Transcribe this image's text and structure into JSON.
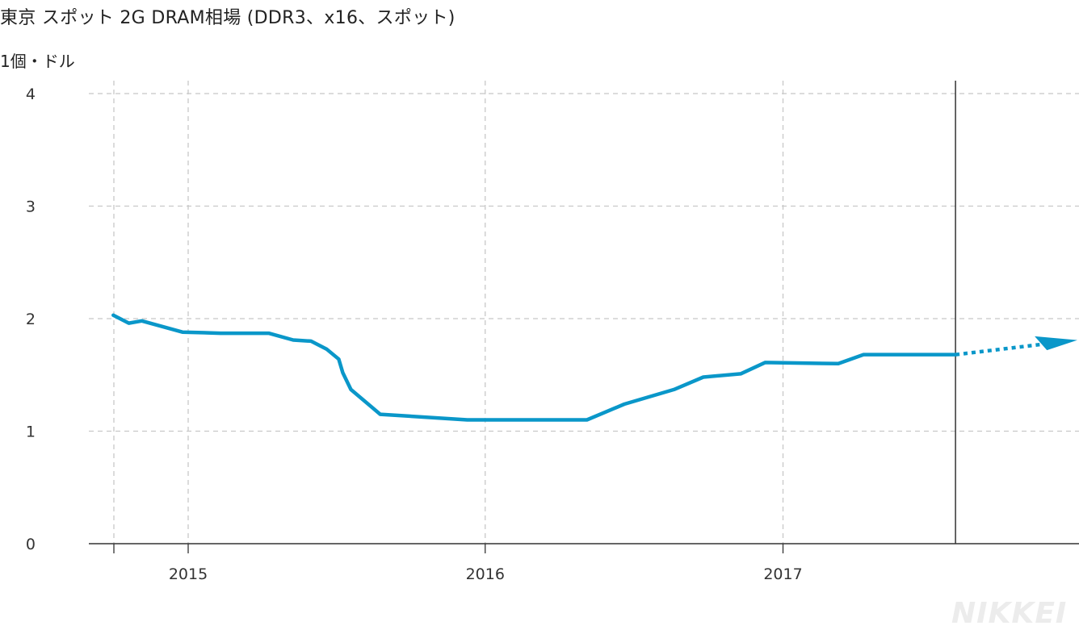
{
  "chart_data": {
    "type": "line",
    "title": "東京 スポット 2G DRAM相場 (DDR3、x16、スポット)",
    "ylabel": "1個・ドル",
    "ylim": [
      0,
      4
    ],
    "y_ticks": [
      "0",
      "1",
      "2",
      "3",
      "4"
    ],
    "x_ticks": [
      "2015",
      "2016",
      "2017"
    ],
    "grid": true,
    "series": [
      {
        "color": "#0a97c9",
        "points": [
          {
            "x": "2014-10",
            "y": 2.03
          },
          {
            "x": "2014-10-20",
            "y": 1.96
          },
          {
            "x": "2014-11-05",
            "y": 1.98
          },
          {
            "x": "2014-12-25",
            "y": 1.88
          },
          {
            "x": "2015-02-10",
            "y": 1.87
          },
          {
            "x": "2015-04-10",
            "y": 1.87
          },
          {
            "x": "2015-05-10",
            "y": 1.81
          },
          {
            "x": "2015-06-01",
            "y": 1.8
          },
          {
            "x": "2015-06-20",
            "y": 1.73
          },
          {
            "x": "2015-07-05",
            "y": 1.64
          },
          {
            "x": "2015-07-10",
            "y": 1.52
          },
          {
            "x": "2015-07-20",
            "y": 1.37
          },
          {
            "x": "2015-08-25",
            "y": 1.15
          },
          {
            "x": "2015-12-10",
            "y": 1.1
          },
          {
            "x": "2016-05-05",
            "y": 1.1
          },
          {
            "x": "2016-06-20",
            "y": 1.24
          },
          {
            "x": "2016-08-20",
            "y": 1.37
          },
          {
            "x": "2016-09-25",
            "y": 1.48
          },
          {
            "x": "2016-11-10",
            "y": 1.51
          },
          {
            "x": "2016-12-10",
            "y": 1.61
          },
          {
            "x": "2017-03-10",
            "y": 1.6
          },
          {
            "x": "2017-04-10",
            "y": 1.68
          },
          {
            "x": "2017-08",
            "y": 1.68
          }
        ]
      }
    ],
    "forecast": {
      "from": {
        "x": "2017-08",
        "y": 1.68
      },
      "to": {
        "y": 1.78
      },
      "style": "dotted-arrow"
    },
    "marker_line": {
      "x": "2017-08"
    }
  },
  "branding": {
    "logo": "NIKKEI"
  }
}
